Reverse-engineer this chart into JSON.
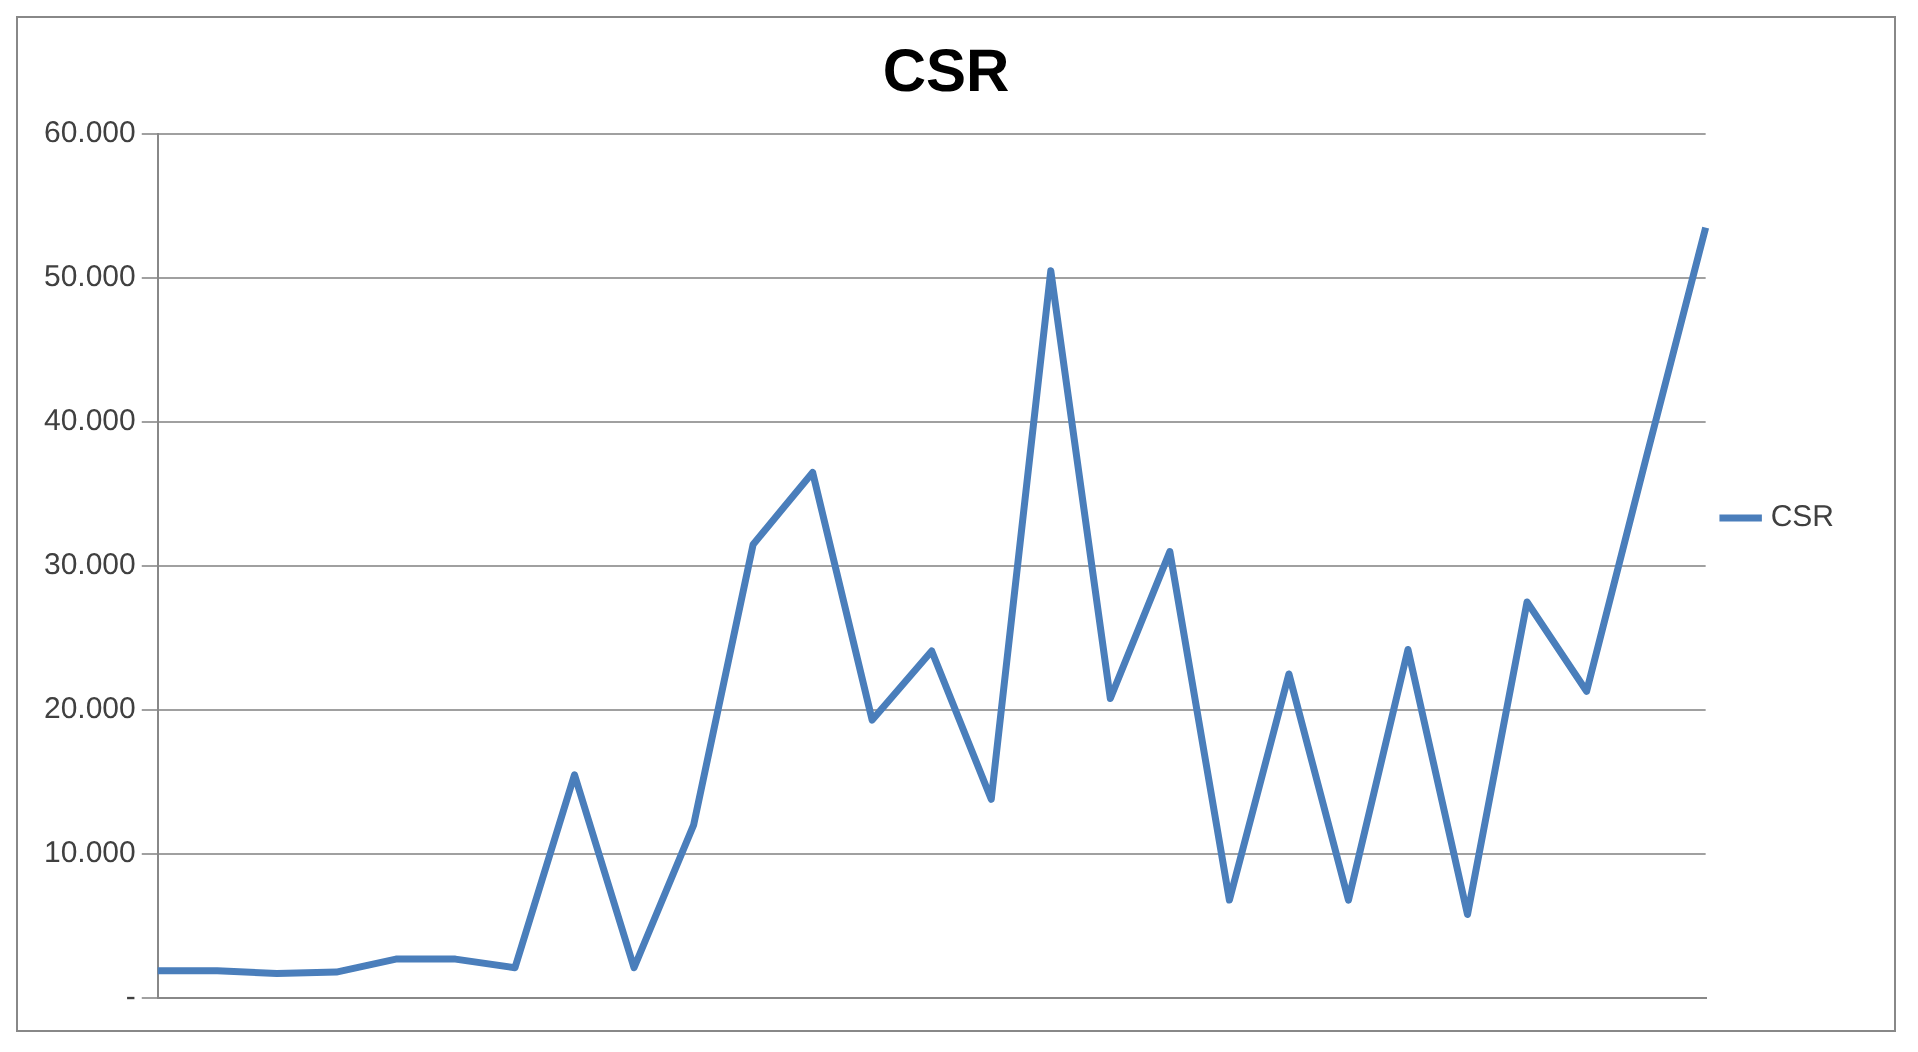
{
  "chart_data": {
    "type": "line",
    "title": "CSR",
    "categories": [
      null,
      null,
      null,
      null,
      null,
      null,
      null,
      null,
      null,
      null,
      null,
      null,
      null,
      null,
      null,
      null,
      null,
      null,
      null,
      null,
      null,
      null,
      null,
      null,
      null,
      null,
      null
    ],
    "series": [
      {
        "name": "CSR",
        "color": "#4a7ebb",
        "values": [
          1900,
          1900,
          1700,
          1800,
          2700,
          2700,
          2100,
          15500,
          2100,
          12000,
          31500,
          36500,
          19300,
          24100,
          13800,
          50500,
          20800,
          31000,
          6800,
          22500,
          6800,
          24200,
          5800,
          27500,
          21300,
          37500,
          53500
        ]
      }
    ],
    "ylim": [
      0,
      60000
    ],
    "yticks": [
      {
        "value": 0,
        "label": "-"
      },
      {
        "value": 10000,
        "label": "10.000"
      },
      {
        "value": 20000,
        "label": "20.000"
      },
      {
        "value": 30000,
        "label": "30.000"
      },
      {
        "value": 40000,
        "label": "40.000"
      },
      {
        "value": 50000,
        "label": "50.000"
      },
      {
        "value": 60000,
        "label": "60.000"
      }
    ],
    "grid": "y",
    "legend": "right",
    "marker": "none",
    "line_style": "solid",
    "tick_labels": "y"
  }
}
